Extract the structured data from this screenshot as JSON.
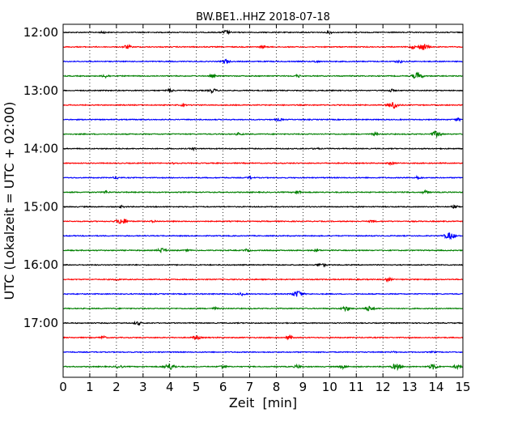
{
  "chart_data": {
    "type": "line",
    "title": "BW.BE1..HHZ 2018-07-18",
    "xlabel": "Zeit  [min]",
    "ylabel": "UTC (Lokalzeit = UTC + 02:00)",
    "xlim": [
      0,
      15
    ],
    "x_ticks": [
      "0",
      "1",
      "2",
      "3",
      "4",
      "5",
      "6",
      "7",
      "8",
      "9",
      "10",
      "11",
      "12",
      "13",
      "14",
      "15"
    ],
    "y_tick_labels": [
      "12:00",
      "13:00",
      "14:00",
      "15:00",
      "16:00",
      "17:00"
    ],
    "trace_start_times": [
      "12:00",
      "12:15",
      "12:30",
      "12:45",
      "13:00",
      "13:15",
      "13:30",
      "13:45",
      "14:00",
      "14:15",
      "14:30",
      "14:45",
      "15:00",
      "15:15",
      "15:30",
      "15:45",
      "16:00",
      "16:15",
      "16:30",
      "16:45",
      "17:00",
      "17:15",
      "17:30",
      "17:45"
    ],
    "color_cycle": [
      "#000000",
      "#ff0000",
      "#0000ff",
      "#008000"
    ],
    "grid": "vertical dotted",
    "events": [
      [
        [
          1.5,
          0.3
        ],
        [
          6.1,
          0.6
        ],
        [
          10,
          0.3
        ]
      ],
      [
        [
          2.4,
          0.6
        ],
        [
          7.5,
          0.4
        ],
        [
          13.5,
          1.0
        ],
        [
          13.1,
          0.4
        ]
      ],
      [
        [
          6.1,
          0.6
        ],
        [
          12.6,
          0.5
        ],
        [
          9.5,
          0.3
        ]
      ],
      [
        [
          1.6,
          0.5
        ],
        [
          5.6,
          0.4
        ],
        [
          8.8,
          0.4
        ],
        [
          13.3,
          1.0
        ]
      ],
      [
        [
          4.0,
          0.5
        ],
        [
          5.6,
          0.6
        ],
        [
          12.3,
          0.4
        ]
      ],
      [
        [
          12.4,
          1.0
        ],
        [
          4.5,
          0.3
        ]
      ],
      [
        [
          8.1,
          0.4
        ],
        [
          14.8,
          0.4
        ]
      ],
      [
        [
          6.6,
          0.4
        ],
        [
          11.7,
          0.4
        ],
        [
          14.0,
          0.9
        ]
      ],
      [
        [
          4.9,
          0.3
        ],
        [
          9.5,
          0.3
        ]
      ],
      [
        [
          12.3,
          0.4
        ],
        [
          4.2,
          0.3
        ]
      ],
      [
        [
          2.0,
          0.4
        ],
        [
          13.3,
          0.5
        ],
        [
          7.0,
          0.3
        ]
      ],
      [
        [
          1.6,
          0.4
        ],
        [
          8.8,
          0.5
        ],
        [
          13.6,
          0.5
        ]
      ],
      [
        [
          2.2,
          0.3
        ],
        [
          14.7,
          0.4
        ]
      ],
      [
        [
          2.2,
          1.0
        ],
        [
          3.4,
          0.3
        ],
        [
          11.6,
          0.4
        ]
      ],
      [
        [
          14.5,
          1.0
        ]
      ],
      [
        [
          3.7,
          0.7
        ],
        [
          6.9,
          0.4
        ],
        [
          9.5,
          0.4
        ],
        [
          4.7,
          0.3
        ]
      ],
      [
        [
          9.6,
          0.4
        ],
        [
          9.8,
          0.3
        ]
      ],
      [
        [
          2.0,
          0.3
        ],
        [
          12.2,
          0.5
        ]
      ],
      [
        [
          6.7,
          0.4
        ],
        [
          8.8,
          1.0
        ]
      ],
      [
        [
          10.6,
          0.7
        ],
        [
          11.5,
          0.8
        ],
        [
          5.7,
          0.3
        ]
      ],
      [
        [
          2.8,
          0.5
        ]
      ],
      [
        [
          1.5,
          0.4
        ],
        [
          5.0,
          0.6
        ],
        [
          8.5,
          0.5
        ]
      ],
      [
        [
          12.4,
          0.2
        ],
        [
          13.9,
          0.2
        ]
      ],
      [
        [
          4.0,
          1.0
        ],
        [
          2.1,
          0.5
        ],
        [
          6.0,
          0.5
        ],
        [
          8.8,
          0.5
        ],
        [
          10.5,
          0.6
        ],
        [
          12.5,
          0.9
        ],
        [
          13.9,
          0.8
        ],
        [
          14.8,
          0.6
        ]
      ]
    ]
  }
}
